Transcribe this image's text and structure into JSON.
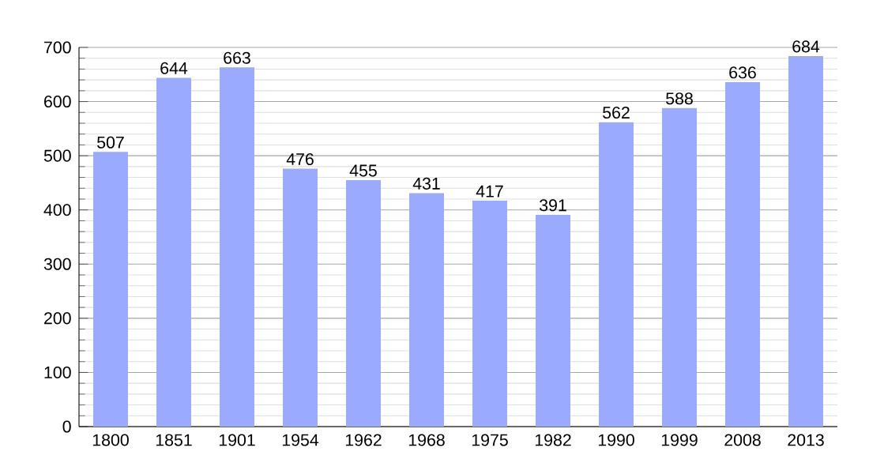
{
  "chart_data": {
    "type": "bar",
    "categories": [
      "1800",
      "1851",
      "1901",
      "1954",
      "1962",
      "1968",
      "1975",
      "1982",
      "1990",
      "1999",
      "2008",
      "2013"
    ],
    "values": [
      507,
      644,
      663,
      476,
      455,
      431,
      417,
      391,
      562,
      588,
      636,
      684
    ],
    "color": "#99aaff",
    "ylim": [
      0,
      700
    ],
    "yticks": [
      0,
      100,
      200,
      300,
      400,
      500,
      600,
      700
    ],
    "grid": "y",
    "data_labels": true
  }
}
